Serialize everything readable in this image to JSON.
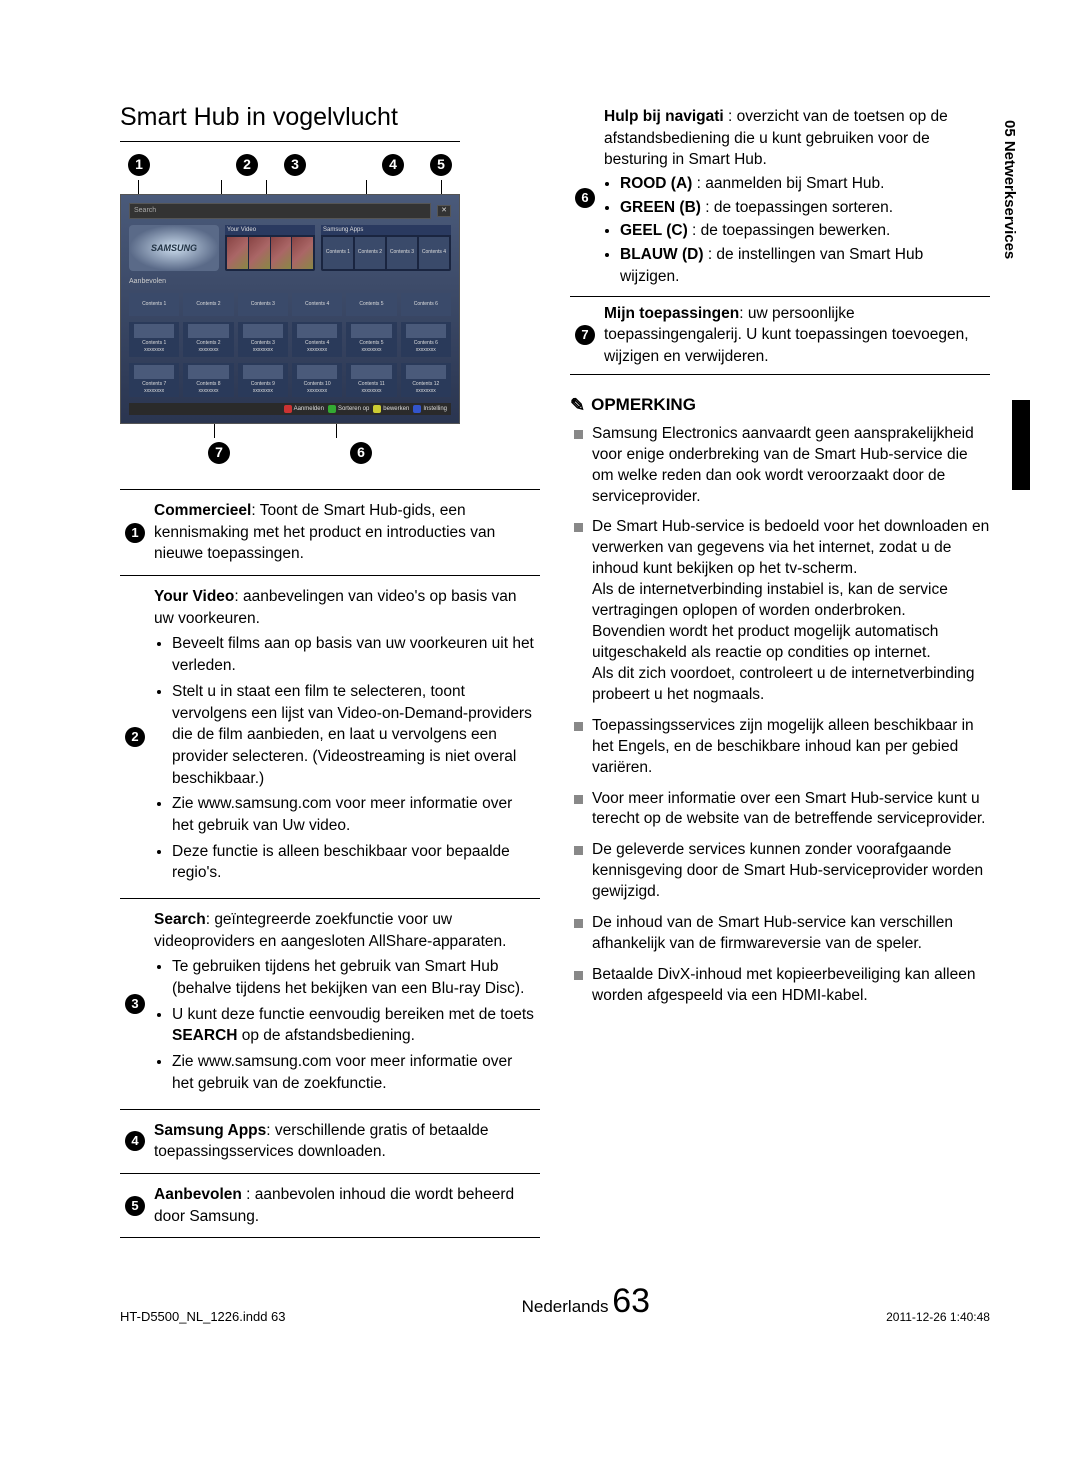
{
  "side_tab": "05  Netwerkservices",
  "title": "Smart Hub in vogelvlucht",
  "callouts_top": [
    "1",
    "2",
    "3",
    "4",
    "5"
  ],
  "callouts_bottom": [
    "7",
    "6"
  ],
  "screenshot": {
    "search_label": "Search",
    "logo": "SAMSUNG",
    "your_video": "Your Video",
    "samsung_apps": "Samsung Apps",
    "aanbevolen": "Aanbevolen",
    "row_tiles": [
      "Contents 1",
      "Contents 2",
      "Contents 3",
      "Contents 4",
      "Contents 5",
      "Contents 6"
    ],
    "grid_tiles_r1": [
      "Contents 1",
      "Contents 2",
      "Contents 3",
      "Contents 4",
      "Contents 5",
      "Contents 6"
    ],
    "grid_sub_r1": [
      "xxxxxxxx",
      "xxxxxxxx",
      "xxxxxxxx",
      "xxxxxxxx",
      "xxxxxxxx",
      "xxxxxxxx"
    ],
    "grid_tiles_r2": [
      "Contents 7",
      "Contents 8",
      "Contents 9",
      "Contents 10",
      "Contents 11",
      "Contents 12"
    ],
    "grid_sub_r2": [
      "xxxxxxxx",
      "xxxxxxxx",
      "xxxxxxxx",
      "xxxxxxxx",
      "xxxxxxxx",
      "xxxxxxxx"
    ],
    "bar": {
      "a": "Aanmelden",
      "b": "Sorteren op",
      "c": "bewerken",
      "d": "Instelling"
    }
  },
  "left_items": [
    {
      "n": "1",
      "html": "<b>Commercieel</b>: Toont de Smart Hub-gids, een kennismaking met het product en introducties van nieuwe toepassingen."
    },
    {
      "n": "2",
      "html": "<b>Your Video</b>: aanbevelingen van video's op basis van uw voorkeuren.<ul><li>Beveelt films aan op basis van uw voorkeuren uit het verleden.</li><li>Stelt u in staat een film te selecteren, toont vervolgens een lijst van Video-on-Demand-providers die de film aanbieden, en laat u vervolgens een provider selecteren. (Videostreaming is niet overal beschikbaar.)</li><li>Zie www.samsung.com voor meer informatie over het gebruik van Uw video.</li><li>Deze functie is alleen beschikbaar voor bepaalde regio's.</li></ul>"
    },
    {
      "n": "3",
      "html": "<b>Search</b>: geïntegreerde zoekfunctie voor uw videoproviders en aangesloten AllShare-apparaten.<ul><li>Te gebruiken tijdens het gebruik van Smart Hub (behalve tijdens het bekijken van een Blu-ray Disc).</li><li>U kunt deze functie eenvoudig bereiken met de toets <b>SEARCH</b> op de afstandsbediening.</li><li>Zie www.samsung.com voor meer informatie over het gebruik van de zoekfunctie.</li></ul>"
    },
    {
      "n": "4",
      "html": "<b>Samsung Apps</b>: verschillende gratis of betaalde toepassingsservices downloaden."
    },
    {
      "n": "5",
      "html": "<b>Aanbevolen</b> : aanbevolen inhoud die wordt beheerd door Samsung."
    }
  ],
  "right_items": [
    {
      "n": "6",
      "html": "<b>Hulp bij navigati</b> : overzicht van de toetsen op de afstandsbediening die u kunt gebruiken voor de besturing in Smart Hub.<ul><li><b>ROOD (A)</b> : aanmelden bij Smart Hub.</li><li><b>GREEN (B)</b> : de toepassingen sorteren.</li><li><b>GEEL (C)</b> : de toepassingen bewerken.</li><li><b>BLAUW (D)</b> : de instellingen van Smart Hub wijzigen.</li></ul>"
    },
    {
      "n": "7",
      "html": "<b>Mijn toepassingen</b>: uw persoonlijke toepassingengalerij. U kunt toepassingen toevoegen, wijzigen en verwijderen."
    }
  ],
  "note_heading": "OPMERKING",
  "notes": [
    "Samsung Electronics aanvaardt geen aansprakelijkheid voor enige onderbreking van de Smart Hub-service die om welke reden dan ook wordt veroorzaakt door de serviceprovider.",
    "De Smart Hub-service is bedoeld voor het downloaden en verwerken van gegevens via het internet, zodat u de inhoud kunt bekijken op het tv-scherm.\nAls de internetverbinding instabiel is, kan de service vertragingen oplopen of worden onderbroken.\nBovendien wordt het product mogelijk automatisch uitgeschakeld als reactie op condities op internet.\nAls dit zich voordoet, controleert u de internetverbinding probeert u het nogmaals.",
    "Toepassingsservices zijn mogelijk alleen beschikbaar in het Engels, en de beschikbare inhoud kan per gebied variëren.",
    "Voor meer informatie over een Smart Hub-service kunt u terecht op de website van de betreffende serviceprovider.",
    "De geleverde services kunnen zonder voorafgaande kennisgeving door de Smart Hub-serviceprovider worden gewijzigd.",
    "De inhoud van de Smart Hub-service kan verschillen afhankelijk van de firmwareversie van de speler.",
    "Betaalde DivX-inhoud met kopieerbeveiliging kan alleen worden afgespeeld via een HDMI-kabel."
  ],
  "footer": {
    "lang": "Nederlands",
    "page": "63",
    "indd": "HT-D5500_NL_1226.indd   63",
    "stamp": "2011-12-26   1:40:48"
  }
}
